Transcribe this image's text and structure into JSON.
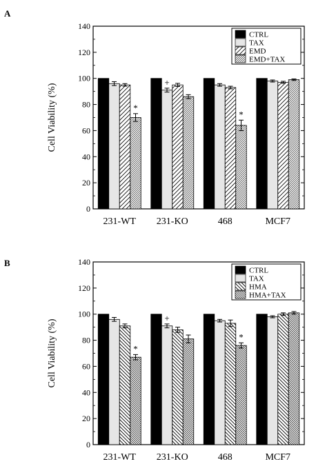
{
  "chart_data": [
    {
      "type": "bar",
      "panel": "A",
      "ylabel": "Cell Viability (%)",
      "xlabel": "",
      "ylim": [
        0,
        140
      ],
      "yticks": [
        0,
        20,
        40,
        60,
        80,
        100,
        120,
        140
      ],
      "categories": [
        "231-WT",
        "231-KO",
        "468",
        "MCF7"
      ],
      "legend_position": "top-right",
      "series": [
        {
          "name": "CTRL",
          "pattern": "solid-black",
          "values": [
            100,
            100,
            100,
            100
          ],
          "errors": [
            0,
            0,
            0,
            0
          ]
        },
        {
          "name": "TAX",
          "pattern": "light-gray",
          "values": [
            96,
            91,
            95,
            98
          ],
          "errors": [
            1.5,
            1.5,
            1.0,
            0.8
          ]
        },
        {
          "name": "EMD",
          "pattern": "wide-diagonal",
          "values": [
            95,
            95,
            93,
            97
          ],
          "errors": [
            1.0,
            1.2,
            1.0,
            0.8
          ]
        },
        {
          "name": "EMD+TAX",
          "pattern": "dense-diagonal",
          "values": [
            70,
            86,
            64,
            99
          ],
          "errors": [
            3.0,
            1.5,
            4.0,
            0.6
          ]
        }
      ],
      "annotations": [
        {
          "text": "*",
          "category": "231-WT",
          "series": "EMD+TAX"
        },
        {
          "text": "+",
          "category": "231-KO",
          "series": "TAX"
        },
        {
          "text": "*",
          "category": "468",
          "series": "EMD+TAX"
        }
      ]
    },
    {
      "type": "bar",
      "panel": "B",
      "ylabel": "Cell Viability (%)",
      "xlabel": "",
      "ylim": [
        0,
        140
      ],
      "yticks": [
        0,
        20,
        40,
        60,
        80,
        100,
        120,
        140
      ],
      "categories": [
        "231-WT",
        "231-KO",
        "468",
        "MCF7"
      ],
      "legend_position": "top-right",
      "series": [
        {
          "name": "CTRL",
          "pattern": "solid-black",
          "values": [
            100,
            100,
            100,
            100
          ],
          "errors": [
            0,
            0,
            0,
            0
          ]
        },
        {
          "name": "TAX",
          "pattern": "light-gray",
          "values": [
            96,
            91,
            95,
            98
          ],
          "errors": [
            1.5,
            1.5,
            1.0,
            0.8
          ]
        },
        {
          "name": "HMA",
          "pattern": "backslash-diagonal",
          "values": [
            91,
            88,
            93,
            100
          ],
          "errors": [
            1.5,
            2.0,
            2.5,
            1.0
          ]
        },
        {
          "name": "HMA+TAX",
          "pattern": "dense-backslash",
          "values": [
            67,
            81,
            76,
            101
          ],
          "errors": [
            2.0,
            3.0,
            2.0,
            1.0
          ]
        }
      ],
      "annotations": [
        {
          "text": "*",
          "category": "231-WT",
          "series": "HMA+TAX"
        },
        {
          "text": "+",
          "category": "231-KO",
          "series": "TAX"
        },
        {
          "text": "*",
          "category": "468",
          "series": "HMA+TAX"
        }
      ]
    }
  ]
}
